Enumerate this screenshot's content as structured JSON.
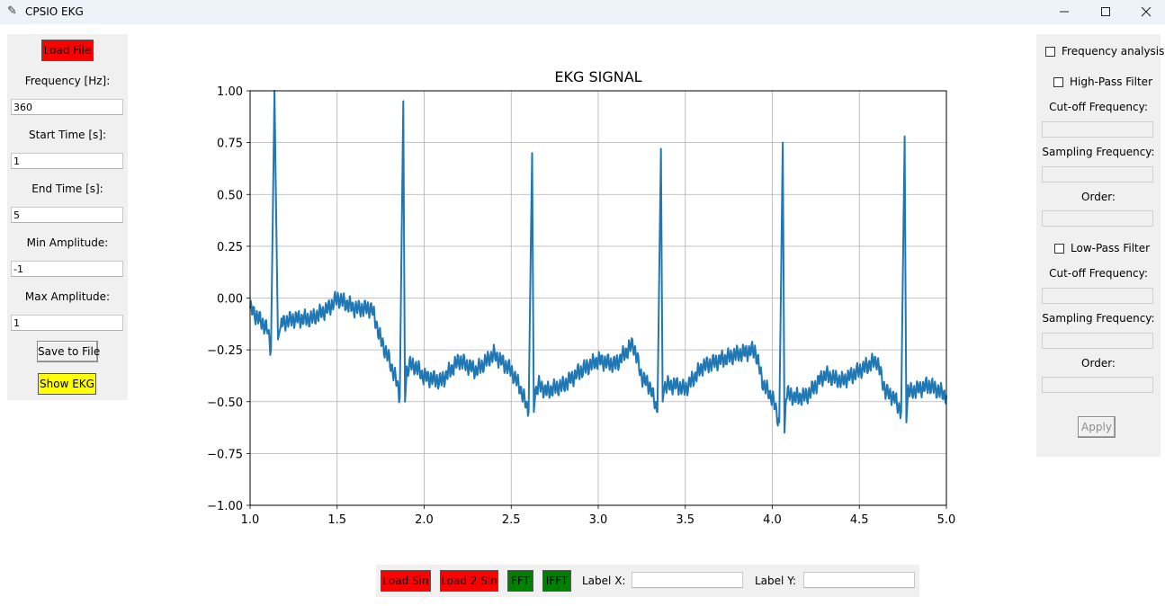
{
  "window": {
    "title": "CPSIO EKG",
    "controls": [
      "minimize-icon",
      "maximize-icon",
      "close-icon"
    ]
  },
  "left_panel": {
    "load_file": "Load File",
    "frequency_label": "Frequency [Hz]:",
    "frequency_value": "360",
    "start_label": "Start Time [s]:",
    "start_value": "1",
    "end_label": "End Time [s]:",
    "end_value": "5",
    "min_amp_label": "Min Amplitude:",
    "min_amp_value": "-1",
    "max_amp_label": "Max Amplitude:",
    "max_amp_value": "1",
    "save_to_file": "Save to File",
    "show_ekg": "Show EKG"
  },
  "right_panel": {
    "frequency_analysis": "Frequency analysis",
    "high_pass": "High-Pass Filter",
    "hp_cutoff_label": "Cut-off Frequency:",
    "hp_sampling_label": "Sampling Frequency:",
    "hp_order_label": "Order:",
    "low_pass": "Low-Pass Filter",
    "lp_cutoff_label": "Cut-off Frequency:",
    "lp_sampling_label": "Sampling Frequency:",
    "lp_order_label": "Order:",
    "apply": "Apply"
  },
  "bottom_panel": {
    "load_sin": "Load Sin",
    "load_2_sin": "Load 2 Sin",
    "fft": "FFT",
    "ifft": "IFFT",
    "label_x": "Label X:",
    "label_x_value": "",
    "label_y": "Label Y:",
    "label_y_value": ""
  },
  "colors": {
    "line": "#1f77b4",
    "red_button": "#ff0000",
    "yellow_button": "#ffff00",
    "green_button": "#008000"
  },
  "chart_data": {
    "type": "line",
    "title": "EKG SIGNAL",
    "xlabel": "",
    "ylabel": "",
    "xlim": [
      1.0,
      5.0
    ],
    "ylim": [
      -1.0,
      1.0
    ],
    "grid": true,
    "x_ticks": [
      "1.0",
      "1.5",
      "2.0",
      "2.5",
      "3.0",
      "3.5",
      "4.0",
      "4.5",
      "5.0"
    ],
    "y_ticks": [
      "1.00",
      "0.75",
      "0.50",
      "0.25",
      "0.00",
      "−0.25",
      "−0.50",
      "−0.75",
      "−1.00"
    ],
    "series": [
      {
        "x": [
          1.0,
          1.05,
          1.1,
          1.12,
          1.14,
          1.16,
          1.18,
          1.25,
          1.35,
          1.45,
          1.5,
          1.6,
          1.7,
          1.75,
          1.8,
          1.84,
          1.86,
          1.88,
          1.89,
          1.9,
          1.92,
          1.95,
          2.0,
          2.1,
          2.2,
          2.3,
          2.4,
          2.5,
          2.55,
          2.6,
          2.62,
          2.63,
          2.64,
          2.66,
          2.7,
          2.8,
          2.9,
          3.0,
          3.1,
          3.2,
          3.25,
          3.3,
          3.34,
          3.36,
          3.37,
          3.38,
          3.4,
          3.45,
          3.5,
          3.6,
          3.7,
          3.8,
          3.9,
          3.95,
          4.0,
          4.04,
          4.06,
          4.07,
          4.08,
          4.1,
          4.15,
          4.2,
          4.3,
          4.4,
          4.5,
          4.6,
          4.65,
          4.7,
          4.74,
          4.76,
          4.77,
          4.78,
          4.8,
          4.9,
          5.0
        ],
        "y": [
          -0.05,
          -0.1,
          -0.15,
          -0.25,
          1.0,
          -0.2,
          -0.12,
          -0.1,
          -0.1,
          -0.05,
          0.0,
          -0.05,
          -0.05,
          -0.2,
          -0.3,
          -0.4,
          -0.48,
          0.95,
          -0.5,
          -0.35,
          -0.32,
          -0.33,
          -0.38,
          -0.4,
          -0.3,
          -0.35,
          -0.27,
          -0.35,
          -0.43,
          -0.55,
          0.7,
          -0.55,
          -0.45,
          -0.42,
          -0.45,
          -0.42,
          -0.35,
          -0.3,
          -0.32,
          -0.22,
          -0.38,
          -0.43,
          -0.55,
          0.72,
          -0.5,
          -0.43,
          -0.42,
          -0.42,
          -0.44,
          -0.33,
          -0.3,
          -0.27,
          -0.25,
          -0.42,
          -0.48,
          -0.6,
          0.75,
          -0.65,
          -0.45,
          -0.47,
          -0.48,
          -0.47,
          -0.37,
          -0.4,
          -0.35,
          -0.3,
          -0.45,
          -0.48,
          -0.55,
          0.78,
          -0.6,
          -0.45,
          -0.45,
          -0.42,
          -0.47
        ]
      }
    ]
  }
}
